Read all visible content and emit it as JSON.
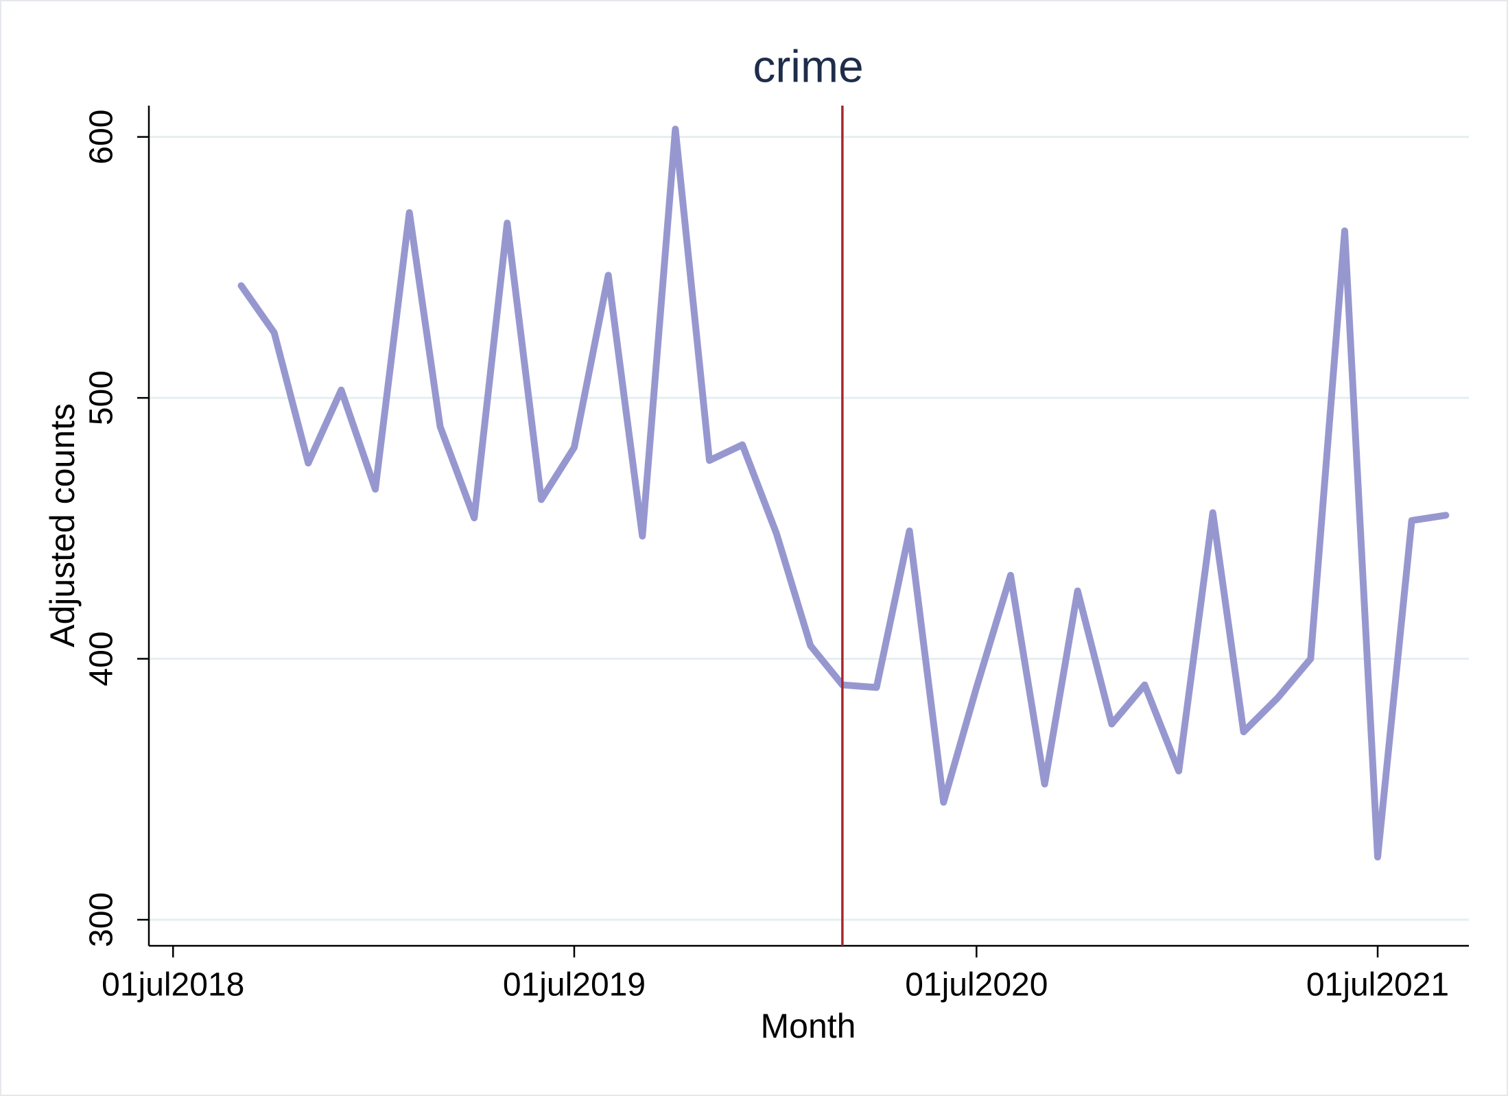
{
  "chart_data": {
    "type": "line",
    "title": "crime",
    "x_label": "Month",
    "y_label": "Adjusted counts",
    "x": [
      "2018-09-01",
      "2018-10-01",
      "2018-11-01",
      "2018-12-01",
      "2019-01-01",
      "2019-02-01",
      "2019-03-01",
      "2019-04-01",
      "2019-05-01",
      "2019-06-01",
      "2019-07-01",
      "2019-08-01",
      "2019-09-01",
      "2019-10-01",
      "2019-11-01",
      "2019-12-01",
      "2020-01-01",
      "2020-02-01",
      "2020-03-01",
      "2020-04-01",
      "2020-05-01",
      "2020-06-01",
      "2020-07-01",
      "2020-08-01",
      "2020-09-01",
      "2020-10-01",
      "2020-11-01",
      "2020-12-01",
      "2021-01-01",
      "2021-02-01",
      "2021-03-01",
      "2021-04-01",
      "2021-05-01",
      "2021-06-01",
      "2021-07-01",
      "2021-08-01",
      "2021-09-01"
    ],
    "series": [
      {
        "name": "crime",
        "color": "#9797d0",
        "values": [
          543,
          525,
          475,
          503,
          465,
          571,
          489,
          454,
          567,
          461,
          481,
          547,
          447,
          603,
          476,
          482,
          448,
          405,
          390,
          389,
          449,
          345,
          389,
          432,
          352,
          426,
          375,
          390,
          357,
          456,
          372,
          385,
          400,
          564,
          324,
          453,
          455
        ]
      }
    ],
    "xlim": [
      "2018-06-09",
      "2021-09-22"
    ],
    "xticks": [
      {
        "value": "2018-07-01",
        "label": "01jul2018"
      },
      {
        "value": "2019-07-01",
        "label": "01jul2019"
      },
      {
        "value": "2020-07-01",
        "label": "01jul2020"
      },
      {
        "value": "2021-07-01",
        "label": "01jul2021"
      }
    ],
    "ylim": [
      290,
      612
    ],
    "yticks": [
      300,
      400,
      500,
      600
    ],
    "grid": true,
    "vline": {
      "x": "2020-03-01",
      "color": "#a8262e"
    }
  }
}
